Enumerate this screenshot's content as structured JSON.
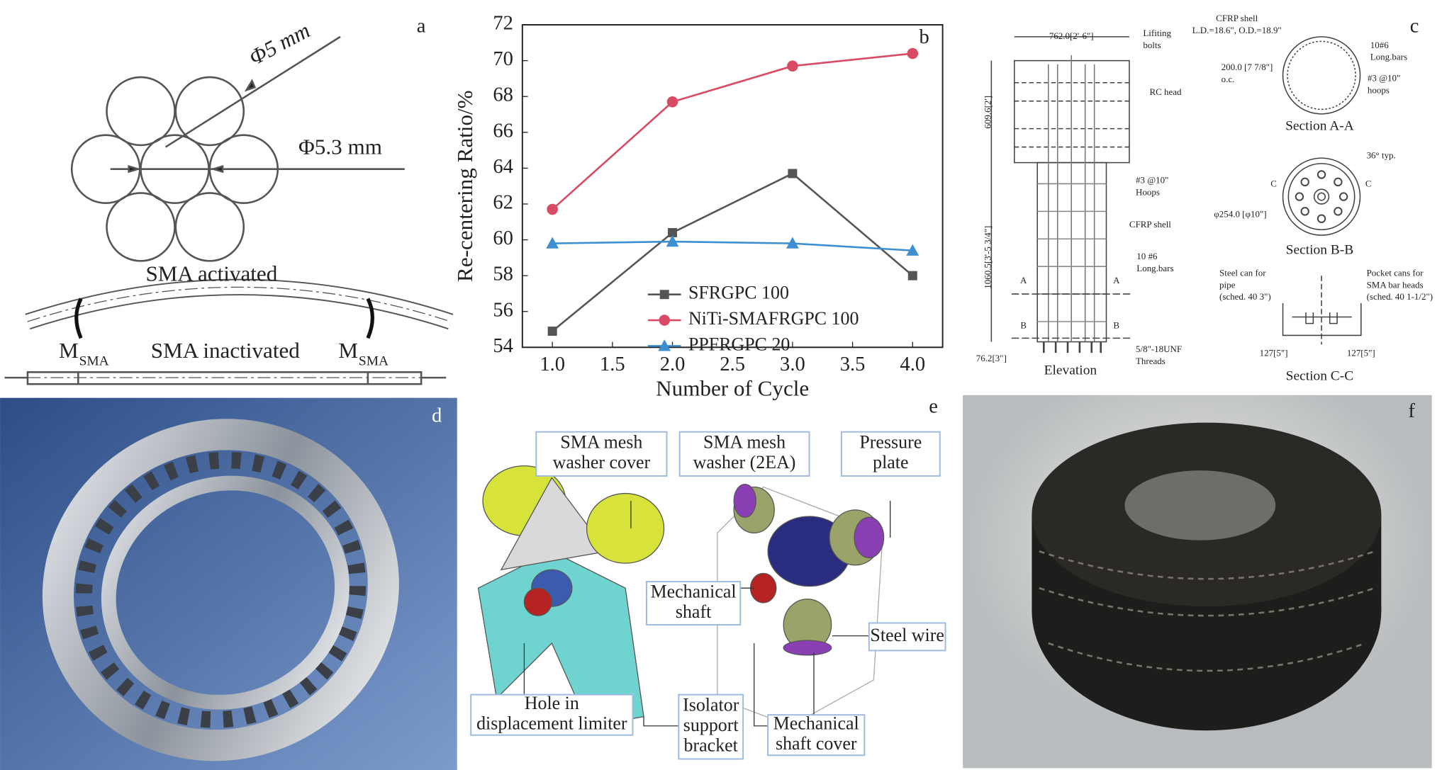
{
  "panels": {
    "a": {
      "letter": "a",
      "wire_diameter": "Φ5 mm",
      "strand_diameter": "Φ5.3 mm",
      "activated": "SMA activated",
      "inactivated": "SMA inactivated",
      "moment": {
        "symbol": "M",
        "subscript": "SMA"
      }
    },
    "c": {
      "letter": "c",
      "labels": [
        [
          "762.0[2'-6\"]"
        ],
        [
          "Lifiting",
          "bolts"
        ],
        [
          "RC head"
        ],
        [
          "609.6[2']"
        ],
        [
          "#3 @10\"",
          "Hoops"
        ],
        [
          "CFRP shell"
        ],
        [
          "10 #6",
          "Long.bars"
        ],
        [
          "1060.5[3'-5 3/4\"]"
        ],
        [
          "A"
        ],
        [
          "A"
        ],
        [
          "B"
        ],
        [
          "B"
        ],
        [
          "5/8\"-18UNF",
          "Threads"
        ],
        [
          "76.2[3\"]"
        ],
        [
          "Elevation"
        ],
        [
          "CFRP shell",
          "L.D.=18.6\", O.D.=18.9\""
        ],
        [
          "200.0 [7 7/8\"]",
          "o.c."
        ],
        [
          "10#6",
          "Long.bars"
        ],
        [
          "#3 @10\"",
          "hoops"
        ],
        [
          "Section A-A"
        ],
        [
          "36° typ."
        ],
        [
          "C"
        ],
        [
          "C"
        ],
        [
          "φ254.0 [φ10\"]"
        ],
        [
          "Section B-B"
        ],
        [
          "Steel can for",
          "pipe",
          "(sched. 40 3\")"
        ],
        [
          "Pocket cans for",
          "SMA bar heads",
          "(sched. 40 1-1/2\")"
        ],
        [
          "127[5\"]"
        ],
        [
          "127[5\"]"
        ],
        [
          "Section C-C"
        ]
      ]
    },
    "d": {
      "letter": "d"
    },
    "e": {
      "letter": "e",
      "labels": [
        [
          "SMA mesh",
          "washer cover"
        ],
        [
          "SMA mesh",
          "washer (2EA)"
        ],
        [
          "Pressure",
          "plate"
        ],
        [
          "Mechanical",
          "shaft"
        ],
        [
          "Steel wire"
        ],
        [
          "Hole in",
          "displacement limiter"
        ],
        [
          "Isolator",
          "support",
          "bracket"
        ],
        [
          "Mechanical",
          "shaft cover"
        ]
      ]
    },
    "f": {
      "letter": "f"
    }
  },
  "chart_data": {
    "type": "line",
    "panel_label": "b",
    "x_label": "Number of Cycle",
    "y_label": "Re-centering Ratio/%",
    "x": [
      1.0,
      2.0,
      3.0,
      4.0
    ],
    "xlim": [
      0.75,
      4.25
    ],
    "xticks": [
      {
        "value": 1,
        "label": "1.0"
      },
      1.5,
      {
        "value": 2,
        "label": "2.0"
      },
      2.5,
      {
        "value": 3,
        "label": "3.0"
      },
      3.5,
      {
        "value": 4,
        "label": "4.0"
      }
    ],
    "ylim": [
      54,
      72
    ],
    "yticks": [
      54,
      56,
      58,
      60,
      62,
      64,
      66,
      68,
      70,
      72
    ],
    "grid": false,
    "legend": "center",
    "series": [
      {
        "name": "SFRGPC 100",
        "color": "#555555",
        "marker": "square",
        "values": [
          54.9,
          60.4,
          63.7,
          58.0
        ]
      },
      {
        "name": "NiTi-SMAFRGPC 100",
        "color": "#d94a64",
        "marker": "circle",
        "values": [
          61.7,
          67.7,
          69.7,
          70.4
        ]
      },
      {
        "name": "PPFRGPC 20",
        "color": "#3d8fd1",
        "marker": "triangle",
        "values": [
          59.8,
          59.9,
          59.8,
          59.4
        ]
      }
    ]
  }
}
